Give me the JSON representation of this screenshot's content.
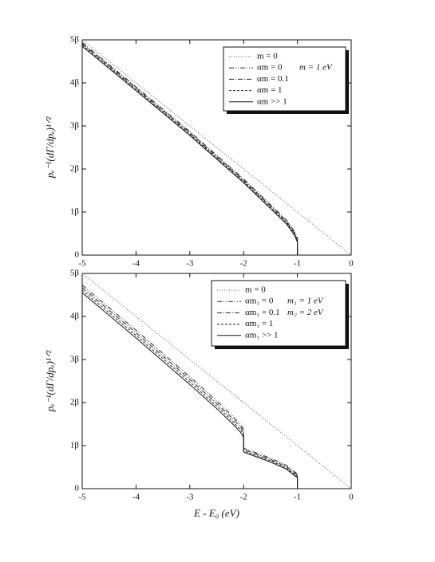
{
  "chart_data": [
    {
      "type": "line",
      "ylabel": "pₑ⁻¹(dΓ/dpₑ)¹ᐟ²",
      "xlim": [
        -5,
        0
      ],
      "xticks": [
        -5,
        -4,
        -3,
        -2,
        -1,
        0
      ],
      "ylim": [
        0,
        5
      ],
      "yticks": [
        0,
        {
          "value": 1,
          "label": "1β"
        },
        {
          "value": 2,
          "label": "2β"
        },
        {
          "value": 3,
          "label": "3β"
        },
        {
          "value": 4,
          "label": "4β"
        },
        {
          "value": 5,
          "label": "5β"
        }
      ],
      "legend": "upper right",
      "annotations": [
        "m = 1 eV"
      ],
      "series": [
        {
          "name": "m = 0",
          "color": "#555",
          "dash": "1,2",
          "x": [
            -5,
            0
          ],
          "values": [
            5,
            0
          ]
        },
        {
          "name": "αm = 0",
          "color": "#222",
          "dash": "6,2,1,2,1,2",
          "x": [
            -5,
            -4,
            -3,
            -2,
            -1.5,
            -1.2,
            -1.05,
            -1,
            -1
          ],
          "values": [
            4.94,
            3.91,
            2.87,
            1.77,
            1.17,
            0.81,
            0.54,
            0.39,
            0
          ]
        },
        {
          "name": "αm = 0.1",
          "color": "#222",
          "dash": "6,2,1,2",
          "x": [
            -5,
            -4,
            -3,
            -2,
            -1.5,
            -1.2,
            -1.05,
            -1,
            -1
          ],
          "values": [
            4.91,
            3.88,
            2.84,
            1.74,
            1.14,
            0.78,
            0.51,
            0.36,
            0
          ]
        },
        {
          "name": "αm = 1",
          "color": "#222",
          "dash": "3,2",
          "x": [
            -5,
            -4,
            -3,
            -2,
            -1.5,
            -1.2,
            -1.05,
            -1,
            -1
          ],
          "values": [
            4.88,
            3.85,
            2.81,
            1.71,
            1.11,
            0.75,
            0.48,
            0.33,
            0
          ]
        },
        {
          "name": "αm >> 1",
          "color": "#111",
          "dash": "none",
          "x": [
            -5,
            -4,
            -3,
            -2,
            -1.5,
            -1.2,
            -1.05,
            -1,
            -1
          ],
          "values": [
            4.85,
            3.82,
            2.78,
            1.68,
            1.08,
            0.72,
            0.45,
            0.3,
            0
          ]
        }
      ]
    },
    {
      "type": "line",
      "xlabel": "E - E₀ (eV)",
      "ylabel": "pₑ⁻¹(dΓ/dpₑ)¹ᐟ²",
      "xlim": [
        -5,
        0
      ],
      "xticks": [
        -5,
        -4,
        -3,
        -2,
        -1,
        0
      ],
      "ylim": [
        0,
        5
      ],
      "yticks": [
        0,
        {
          "value": 1,
          "label": "1β"
        },
        {
          "value": 2,
          "label": "2β"
        },
        {
          "value": 3,
          "label": "3β"
        },
        {
          "value": 4,
          "label": "4β"
        },
        {
          "value": 5,
          "label": "5β"
        }
      ],
      "legend": "upper right",
      "annotations": [
        "m₁ = 1 eV",
        "m₂ = 2 eV"
      ],
      "series": [
        {
          "name": "m = 0",
          "color": "#555",
          "dash": "1,2",
          "x": [
            -5,
            0
          ],
          "values": [
            5,
            0
          ]
        },
        {
          "name": "αm₁ = 0",
          "color": "#222",
          "dash": "6,2,1,2,1,2",
          "x": [
            -5,
            -4,
            -3,
            -2.5,
            -2.2,
            -2.05,
            -2,
            -2,
            -1.5,
            -1.2,
            -1.05,
            -1,
            -1
          ],
          "values": [
            4.73,
            3.68,
            2.6,
            2.04,
            1.68,
            1.48,
            1.38,
            0.94,
            0.71,
            0.54,
            0.39,
            0.34,
            0
          ]
        },
        {
          "name": "αm₁ = 0.1",
          "color": "#222",
          "dash": "6,2,1,2",
          "x": [
            -5,
            -4,
            -3,
            -2.5,
            -2.2,
            -2.05,
            -2,
            -2,
            -1.5,
            -1.2,
            -1.05,
            -1,
            -1
          ],
          "values": [
            4.67,
            3.62,
            2.54,
            1.98,
            1.62,
            1.42,
            1.32,
            0.91,
            0.68,
            0.51,
            0.36,
            0.31,
            0
          ]
        },
        {
          "name": "αm₁ = 1",
          "color": "#222",
          "dash": "3,2",
          "x": [
            -5,
            -4,
            -3,
            -2.5,
            -2.2,
            -2.05,
            -2,
            -2,
            -1.5,
            -1.2,
            -1.05,
            -1,
            -1
          ],
          "values": [
            4.61,
            3.56,
            2.48,
            1.92,
            1.56,
            1.36,
            1.26,
            0.88,
            0.65,
            0.48,
            0.33,
            0.28,
            0
          ]
        },
        {
          "name": "αm₁ >> 1",
          "color": "#111",
          "dash": "none",
          "x": [
            -5,
            -4,
            -3,
            -2.5,
            -2.2,
            -2.05,
            -2,
            -2,
            -1.5,
            -1.2,
            -1.05,
            -1,
            -1
          ],
          "values": [
            4.55,
            3.5,
            2.42,
            1.86,
            1.5,
            1.3,
            1.2,
            0.85,
            0.62,
            0.45,
            0.3,
            0.25,
            0
          ]
        }
      ]
    }
  ]
}
